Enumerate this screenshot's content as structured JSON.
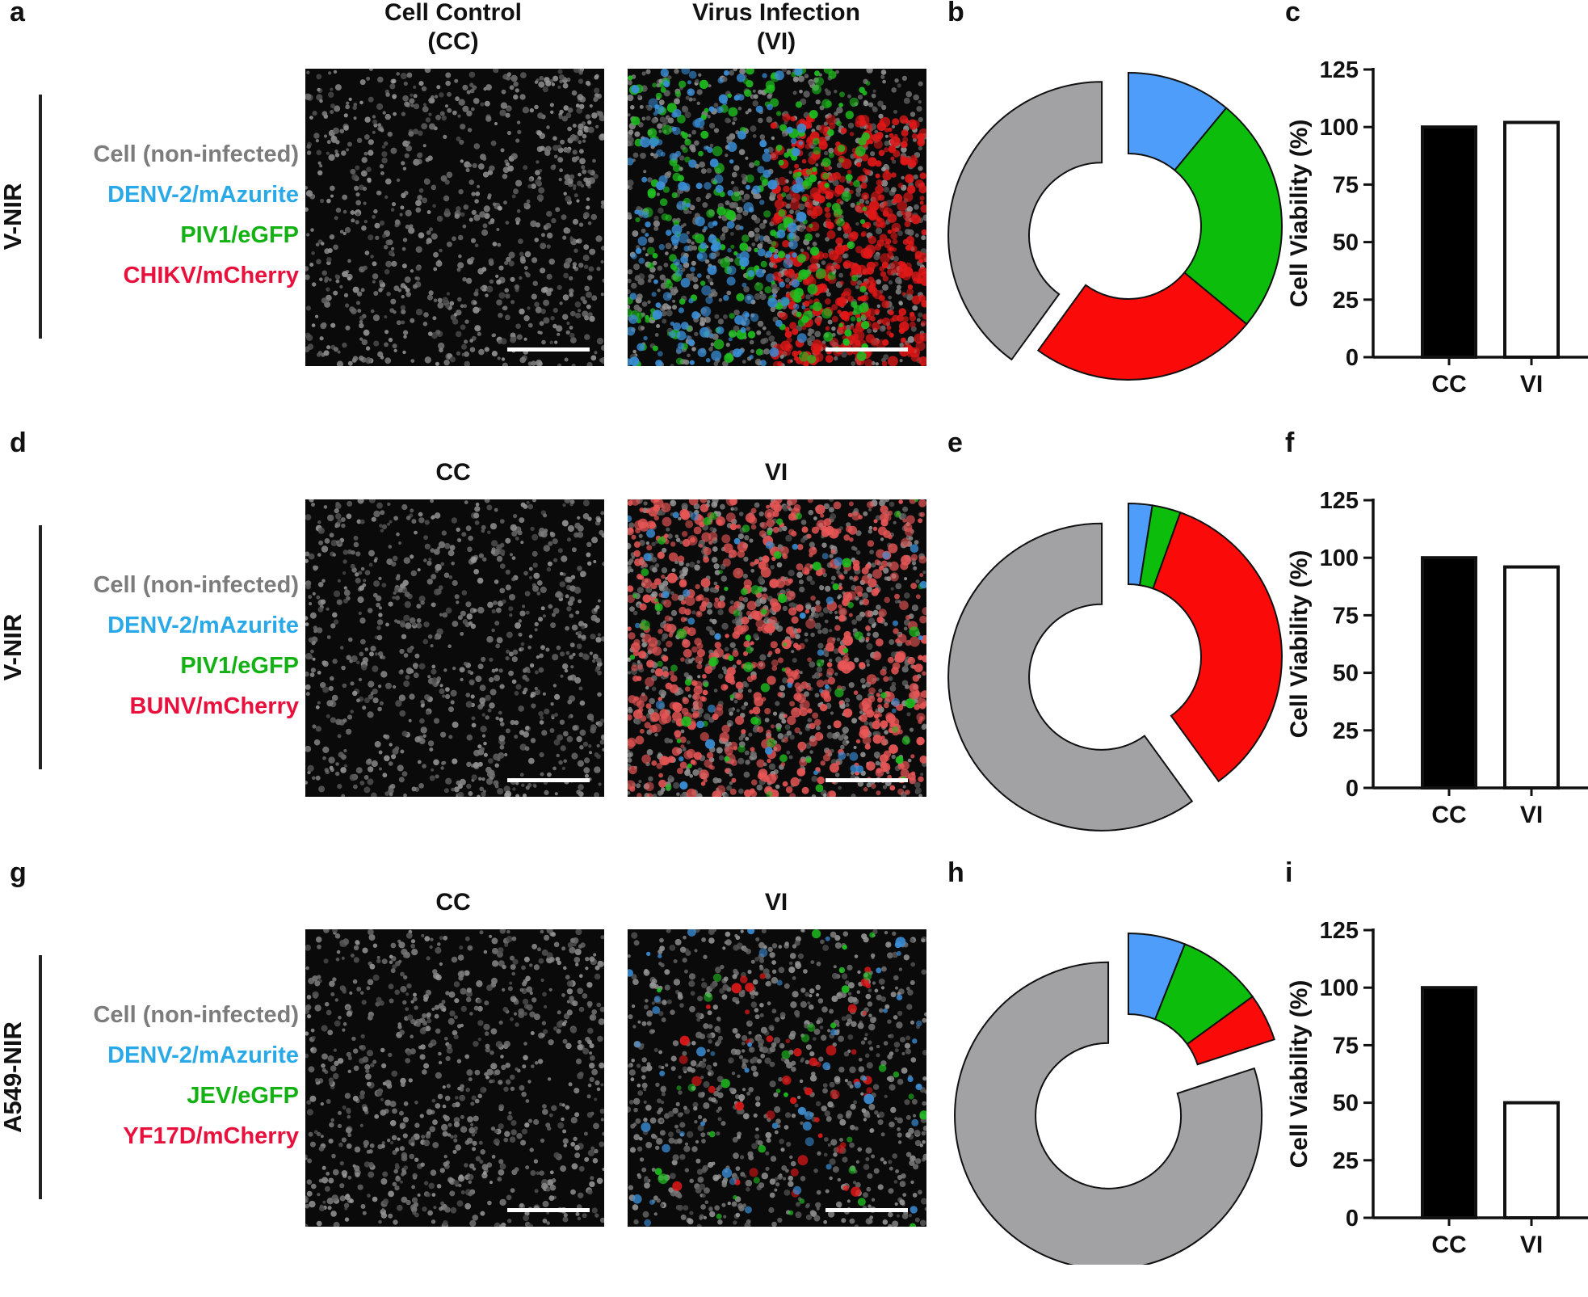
{
  "colors": {
    "cell": "#a2a2a5",
    "blue": "#4f9dfa",
    "green": "#0cbd0c",
    "red": "#fb0a0a",
    "legend_cell": "#7c7c7c",
    "legend_blue": "#2aa9e8",
    "legend_green": "#13b113",
    "legend_red": "#e8103c"
  },
  "rows": [
    {
      "panel_image": "a",
      "panel_pie": "b",
      "panel_bar": "c",
      "cell_line": "V-NIR",
      "col_title_cc": "Cell Control\n(CC)",
      "col_title_vi": "Virus Infection\n(VI)",
      "legend": [
        "Cell (non-infected)",
        "DENV-2/mAzurite",
        "PIV1/eGFP",
        "CHIKV/mCherry"
      ],
      "vi_image_style": "mixed-right-red"
    },
    {
      "panel_image": "d",
      "panel_pie": "e",
      "panel_bar": "f",
      "cell_line": "V-NIR",
      "col_title_cc": "CC",
      "col_title_vi": "VI",
      "legend": [
        "Cell (non-infected)",
        "DENV-2/mAzurite",
        "PIV1/eGFP",
        "BUNV/mCherry"
      ],
      "vi_image_style": "red-diffuse"
    },
    {
      "panel_image": "g",
      "panel_pie": "h",
      "panel_bar": "i",
      "cell_line": "A549-NIR",
      "col_title_cc": "CC",
      "col_title_vi": "VI",
      "legend": [
        "Cell (non-infected)",
        "DENV-2/mAzurite",
        "JEV/eGFP",
        "YF17D/mCherry"
      ],
      "vi_image_style": "sparse"
    }
  ],
  "chart_data": [
    {
      "type": "pie",
      "panel": "b",
      "donut": true,
      "labels": [
        "DENV-2/mAzurite",
        "PIV1/eGFP",
        "CHIKV/mCherry",
        "Cell (non-infected)"
      ],
      "values": [
        11,
        25,
        24,
        40
      ],
      "colors": [
        "#4f9dfa",
        "#0cbd0c",
        "#fb0a0a",
        "#a2a2a5"
      ],
      "exploded": "Cell (non-infected)"
    },
    {
      "type": "bar",
      "panel": "c",
      "categories": [
        "CC",
        "VI"
      ],
      "values": [
        100,
        102
      ],
      "fills": [
        "#000000",
        "#ffffff"
      ],
      "ylabel": "Cell Viability (%)",
      "ylim": [
        0,
        125
      ],
      "yticks": [
        0,
        25,
        50,
        75,
        100,
        125
      ]
    },
    {
      "type": "pie",
      "panel": "e",
      "donut": true,
      "labels": [
        "DENV-2/mAzurite",
        "PIV1/eGFP",
        "BUNV/mCherry",
        "Cell (non-infected)"
      ],
      "values": [
        2.5,
        3,
        34.5,
        60
      ],
      "colors": [
        "#4f9dfa",
        "#0cbd0c",
        "#fb0a0a",
        "#a2a2a5"
      ],
      "exploded": "Cell (non-infected)"
    },
    {
      "type": "bar",
      "panel": "f",
      "categories": [
        "CC",
        "VI"
      ],
      "values": [
        100,
        96
      ],
      "fills": [
        "#000000",
        "#ffffff"
      ],
      "ylabel": "Cell Viability (%)",
      "ylim": [
        0,
        125
      ],
      "yticks": [
        0,
        25,
        50,
        75,
        100,
        125
      ]
    },
    {
      "type": "pie",
      "panel": "h",
      "donut": true,
      "labels": [
        "DENV-2/mAzurite",
        "JEV/eGFP",
        "YF17D/mCherry",
        "Cell (non-infected)"
      ],
      "values": [
        6,
        9,
        5,
        80
      ],
      "colors": [
        "#4f9dfa",
        "#0cbd0c",
        "#fb0a0a",
        "#a2a2a5"
      ],
      "exploded": "Cell (non-infected)"
    },
    {
      "type": "bar",
      "panel": "i",
      "categories": [
        "CC",
        "VI"
      ],
      "values": [
        100,
        50
      ],
      "fills": [
        "#000000",
        "#ffffff"
      ],
      "ylabel": "Cell Viability (%)",
      "ylim": [
        0,
        125
      ],
      "yticks": [
        0,
        25,
        50,
        75,
        100,
        125
      ]
    }
  ]
}
